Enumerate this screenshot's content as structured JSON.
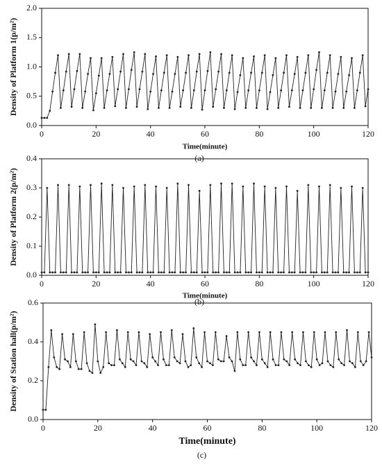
{
  "chart_data": [
    {
      "type": "line",
      "caption": "(a)",
      "x_label": "Time(minute)",
      "y_label": "Density of Platform 1(p/m²)",
      "color": "#222222",
      "xlim": [
        0,
        120
      ],
      "xticks": [
        0,
        20,
        40,
        60,
        80,
        100,
        120
      ],
      "ylim": [
        0,
        2
      ],
      "yticks": [
        {
          "value": 0,
          "label": "0.0"
        },
        {
          "value": 0.5,
          "label": "0.5"
        },
        {
          "value": 1,
          "label": "1.0"
        },
        {
          "value": 1.5,
          "label": "1.5"
        },
        {
          "value": 2,
          "label": "2.0"
        }
      ],
      "x": [
        0,
        1,
        2,
        3,
        4,
        5,
        6,
        7,
        8,
        9,
        10,
        11,
        12,
        13,
        14,
        15,
        16,
        17,
        18,
        19,
        20,
        21,
        22,
        23,
        24,
        25,
        26,
        27,
        28,
        29,
        30,
        31,
        32,
        33,
        34,
        35,
        36,
        37,
        38,
        39,
        40,
        41,
        42,
        43,
        44,
        45,
        46,
        47,
        48,
        49,
        50,
        51,
        52,
        53,
        54,
        55,
        56,
        57,
        58,
        59,
        60,
        61,
        62,
        63,
        64,
        65,
        66,
        67,
        68,
        69,
        70,
        71,
        72,
        73,
        74,
        75,
        76,
        77,
        78,
        79,
        80,
        81,
        82,
        83,
        84,
        85,
        86,
        87,
        88,
        89,
        90,
        91,
        92,
        93,
        94,
        95,
        96,
        97,
        98,
        99,
        100,
        101,
        102,
        103,
        104,
        105,
        106,
        107,
        108,
        109,
        110,
        111,
        112,
        113,
        114,
        115,
        116,
        117,
        118,
        119,
        120
      ],
      "values": [
        0.13,
        0.13,
        0.13,
        0.25,
        0.58,
        0.9,
        1.2,
        0.3,
        0.6,
        0.92,
        1.22,
        0.32,
        0.62,
        0.93,
        1.22,
        0.3,
        0.58,
        0.88,
        1.15,
        0.26,
        0.55,
        0.85,
        1.15,
        0.3,
        0.6,
        0.88,
        1.17,
        0.33,
        0.62,
        0.92,
        1.22,
        0.3,
        0.62,
        0.95,
        1.25,
        0.32,
        0.62,
        0.92,
        1.22,
        0.28,
        0.58,
        0.88,
        1.18,
        0.3,
        0.6,
        0.9,
        1.2,
        0.3,
        0.58,
        0.88,
        1.17,
        0.32,
        0.6,
        0.9,
        1.2,
        0.3,
        0.6,
        0.92,
        1.22,
        0.27,
        0.6,
        0.93,
        1.25,
        0.32,
        0.62,
        0.92,
        1.22,
        0.3,
        0.6,
        0.9,
        1.2,
        0.28,
        0.57,
        0.86,
        1.15,
        0.3,
        0.6,
        0.9,
        1.18,
        0.3,
        0.6,
        0.9,
        1.2,
        0.28,
        0.57,
        0.86,
        1.15,
        0.3,
        0.6,
        0.9,
        1.2,
        0.32,
        0.6,
        0.88,
        1.17,
        0.3,
        0.6,
        0.9,
        1.2,
        0.3,
        0.62,
        0.95,
        1.25,
        0.3,
        0.6,
        0.9,
        1.2,
        0.3,
        0.58,
        0.88,
        1.17,
        0.3,
        0.58,
        0.86,
        1.15,
        0.3,
        0.6,
        0.9,
        1.2,
        0.33,
        0.62
      ]
    },
    {
      "type": "line",
      "caption": "(b)",
      "x_label": "Time(minute)",
      "y_label": "Density of Platform 2(p/m²)",
      "color": "#222222",
      "xlim": [
        0,
        120
      ],
      "xticks": [
        0,
        20,
        40,
        60,
        80,
        100,
        120
      ],
      "ylim": [
        0,
        0.4
      ],
      "yticks": [
        {
          "value": 0,
          "label": "0.0"
        },
        {
          "value": 0.1,
          "label": "0.1"
        },
        {
          "value": 0.2,
          "label": "0.2"
        },
        {
          "value": 0.3,
          "label": "0.3"
        },
        {
          "value": 0.4,
          "label": "0.4"
        }
      ],
      "x": [
        0,
        1,
        2,
        3,
        4,
        5,
        6,
        7,
        8,
        9,
        10,
        11,
        12,
        13,
        14,
        15,
        16,
        17,
        18,
        19,
        20,
        21,
        22,
        23,
        24,
        25,
        26,
        27,
        28,
        29,
        30,
        31,
        32,
        33,
        34,
        35,
        36,
        37,
        38,
        39,
        40,
        41,
        42,
        43,
        44,
        45,
        46,
        47,
        48,
        49,
        50,
        51,
        52,
        53,
        54,
        55,
        56,
        57,
        58,
        59,
        60,
        61,
        62,
        63,
        64,
        65,
        66,
        67,
        68,
        69,
        70,
        71,
        72,
        73,
        74,
        75,
        76,
        77,
        78,
        79,
        80,
        81,
        82,
        83,
        84,
        85,
        86,
        87,
        88,
        89,
        90,
        91,
        92,
        93,
        94,
        95,
        96,
        97,
        98,
        99,
        100,
        101,
        102,
        103,
        104,
        105,
        106,
        107,
        108,
        109,
        110,
        111,
        112,
        113,
        114,
        115,
        116,
        117,
        118,
        119,
        120
      ],
      "values": [
        0.01,
        0.01,
        0.3,
        0.01,
        0.01,
        0.01,
        0.31,
        0.01,
        0.01,
        0.01,
        0.31,
        0.01,
        0.01,
        0.01,
        0.305,
        0.01,
        0.01,
        0.01,
        0.31,
        0.01,
        0.01,
        0.01,
        0.315,
        0.01,
        0.01,
        0.01,
        0.31,
        0.01,
        0.01,
        0.01,
        0.3,
        0.01,
        0.01,
        0.01,
        0.305,
        0.01,
        0.01,
        0.01,
        0.31,
        0.01,
        0.01,
        0.01,
        0.305,
        0.01,
        0.01,
        0.01,
        0.3,
        0.01,
        0.01,
        0.01,
        0.315,
        0.01,
        0.01,
        0.01,
        0.31,
        0.01,
        0.01,
        0.01,
        0.29,
        0.01,
        0.01,
        0.01,
        0.31,
        0.01,
        0.01,
        0.01,
        0.315,
        0.01,
        0.01,
        0.01,
        0.315,
        0.01,
        0.01,
        0.01,
        0.305,
        0.01,
        0.01,
        0.01,
        0.315,
        0.01,
        0.01,
        0.01,
        0.305,
        0.01,
        0.01,
        0.01,
        0.3,
        0.01,
        0.01,
        0.01,
        0.305,
        0.01,
        0.01,
        0.01,
        0.29,
        0.01,
        0.01,
        0.01,
        0.31,
        0.01,
        0.01,
        0.01,
        0.305,
        0.01,
        0.01,
        0.01,
        0.31,
        0.01,
        0.01,
        0.01,
        0.3,
        0.01,
        0.01,
        0.01,
        0.305,
        0.01,
        0.01,
        0.01,
        0.3,
        0.01,
        0.01
      ]
    },
    {
      "type": "line",
      "caption": "(c)",
      "x_label": "Time(minute)",
      "y_label": "Density of Station hall(p/m²)",
      "color": "#222222",
      "xlim": [
        0,
        120
      ],
      "xticks": [
        0,
        20,
        40,
        60,
        80,
        100,
        120
      ],
      "ylim": [
        0,
        0.6
      ],
      "yticks": [
        {
          "value": 0,
          "label": "0.0"
        },
        {
          "value": 0.2,
          "label": "0.2"
        },
        {
          "value": 0.4,
          "label": "0.4"
        },
        {
          "value": 0.6,
          "label": "0.6"
        }
      ],
      "x": [
        0,
        1,
        2,
        3,
        4,
        5,
        6,
        7,
        8,
        9,
        10,
        11,
        12,
        13,
        14,
        15,
        16,
        17,
        18,
        19,
        20,
        21,
        22,
        23,
        24,
        25,
        26,
        27,
        28,
        29,
        30,
        31,
        32,
        33,
        34,
        35,
        36,
        37,
        38,
        39,
        40,
        41,
        42,
        43,
        44,
        45,
        46,
        47,
        48,
        49,
        50,
        51,
        52,
        53,
        54,
        55,
        56,
        57,
        58,
        59,
        60,
        61,
        62,
        63,
        64,
        65,
        66,
        67,
        68,
        69,
        70,
        71,
        72,
        73,
        74,
        75,
        76,
        77,
        78,
        79,
        80,
        81,
        82,
        83,
        84,
        85,
        86,
        87,
        88,
        89,
        90,
        91,
        92,
        93,
        94,
        95,
        96,
        97,
        98,
        99,
        100,
        101,
        102,
        103,
        104,
        105,
        106,
        107,
        108,
        109,
        110,
        111,
        112,
        113,
        114,
        115,
        116,
        117,
        118,
        119,
        120
      ],
      "values": [
        0.05,
        0.05,
        0.27,
        0.46,
        0.32,
        0.27,
        0.26,
        0.44,
        0.31,
        0.3,
        0.27,
        0.44,
        0.3,
        0.26,
        0.26,
        0.45,
        0.29,
        0.25,
        0.24,
        0.49,
        0.3,
        0.24,
        0.27,
        0.45,
        0.29,
        0.28,
        0.28,
        0.46,
        0.31,
        0.29,
        0.27,
        0.45,
        0.31,
        0.3,
        0.28,
        0.45,
        0.3,
        0.29,
        0.27,
        0.44,
        0.32,
        0.3,
        0.28,
        0.45,
        0.31,
        0.28,
        0.28,
        0.46,
        0.32,
        0.3,
        0.29,
        0.44,
        0.3,
        0.27,
        0.28,
        0.47,
        0.32,
        0.29,
        0.27,
        0.45,
        0.3,
        0.29,
        0.28,
        0.45,
        0.31,
        0.3,
        0.3,
        0.43,
        0.32,
        0.3,
        0.25,
        0.45,
        0.31,
        0.28,
        0.28,
        0.45,
        0.32,
        0.3,
        0.28,
        0.45,
        0.31,
        0.29,
        0.27,
        0.45,
        0.31,
        0.28,
        0.28,
        0.45,
        0.31,
        0.3,
        0.28,
        0.45,
        0.31,
        0.29,
        0.28,
        0.45,
        0.3,
        0.28,
        0.27,
        0.45,
        0.31,
        0.28,
        0.29,
        0.45,
        0.3,
        0.28,
        0.27,
        0.45,
        0.31,
        0.29,
        0.28,
        0.46,
        0.3,
        0.29,
        0.27,
        0.45,
        0.3,
        0.28,
        0.3,
        0.45,
        0.32
      ]
    }
  ]
}
